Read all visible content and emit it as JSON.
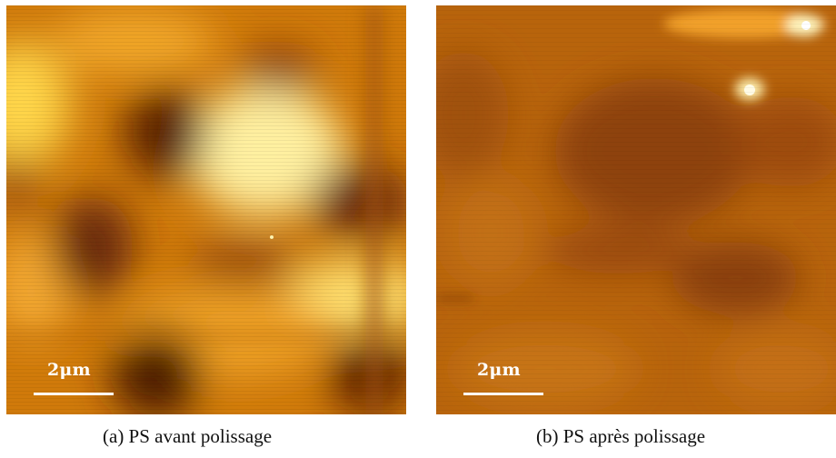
{
  "panels": [
    {
      "scale_label": "2μm",
      "caption": "(a) PS avant polissage"
    },
    {
      "scale_label": "2μm",
      "caption": "(b) PS après polissage"
    }
  ],
  "colors": {
    "background": "#ffffff",
    "afm_dark": "#4a1a04",
    "afm_mid": "#c46a08",
    "afm_bright": "#fff2a0",
    "scale_bar": "#ffffff"
  }
}
